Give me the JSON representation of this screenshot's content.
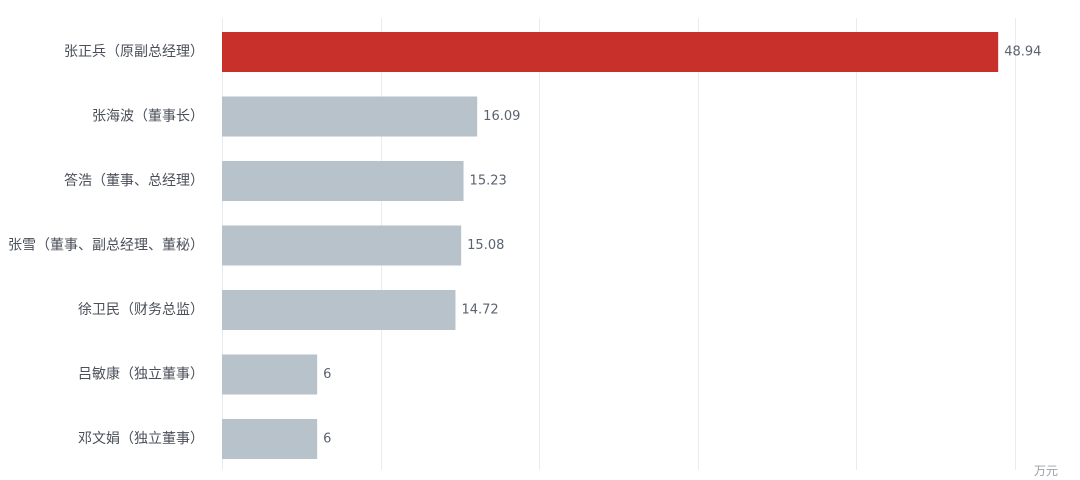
{
  "chart_data": {
    "type": "bar",
    "orientation": "horizontal",
    "categories": [
      "张正兵（原副总经理）",
      "张海波（董事长）",
      "答浩（董事、总经理）",
      "张雪（董事、副总经理、董秘）",
      "徐卫民（财务总监）",
      "吕敏康（独立董事）",
      "邓文娟（独立董事）"
    ],
    "values": [
      48.94,
      16.09,
      15.23,
      15.08,
      14.72,
      6,
      6
    ],
    "value_labels": [
      "48.94",
      "16.09",
      "15.23",
      "15.08",
      "14.72",
      "6",
      "6"
    ],
    "unit": "万元",
    "xlim": [
      0,
      50
    ],
    "grid": true,
    "highlight_index": 0,
    "colors": {
      "highlight": "#c8302c",
      "default": "#b8c2cb",
      "grid": "#e9ebee"
    }
  }
}
